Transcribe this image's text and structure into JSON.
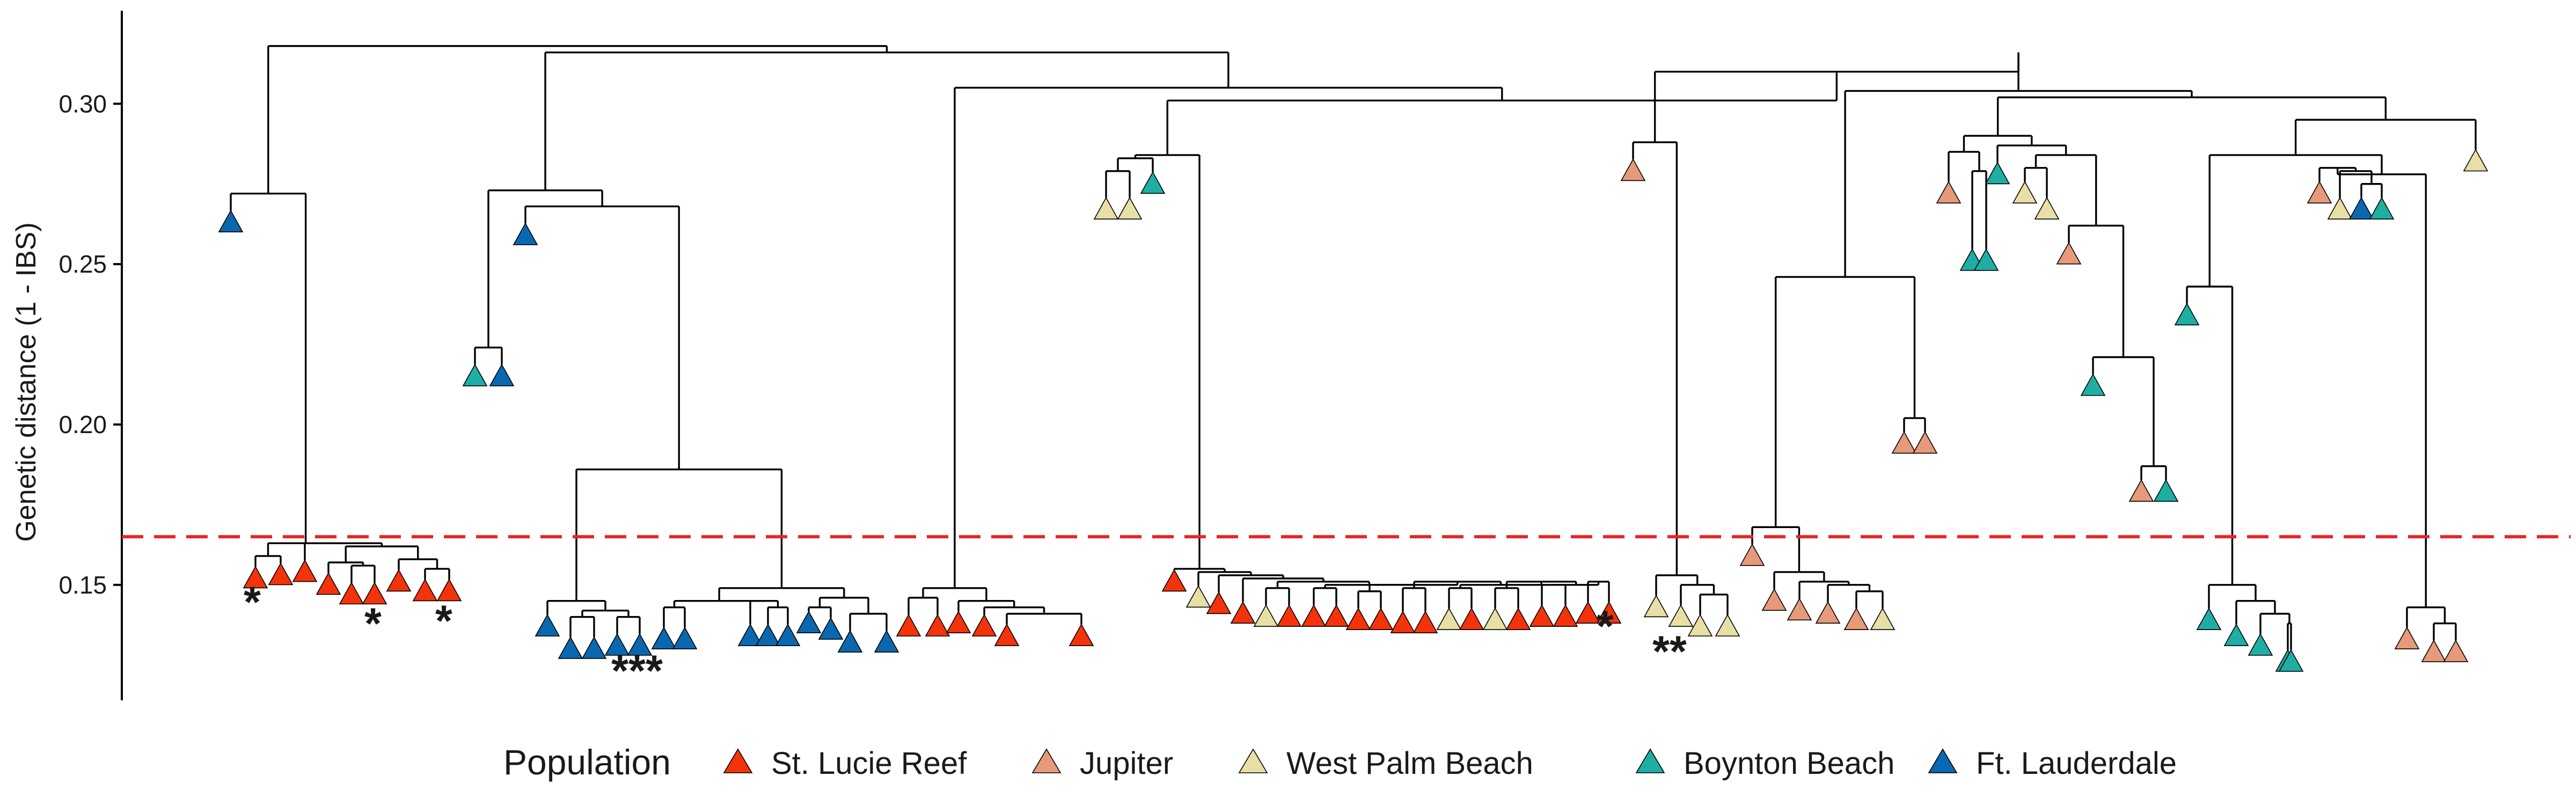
{
  "chart_data": {
    "type": "dendrogram",
    "ylabel": "Genetic distance (1 - IBS)",
    "xlabel": "",
    "ylim": [
      0.114,
      0.329
    ],
    "yticks": [
      0.15,
      0.2,
      0.25,
      0.3
    ],
    "ytick_labels": [
      "0.15",
      "0.20",
      "0.25",
      "0.30"
    ],
    "threshold": {
      "value": 0.165,
      "color": "#ee2222",
      "style": "dashed"
    },
    "legend": {
      "title": "Population",
      "placement": "bottom",
      "items": [
        {
          "key": "SLR",
          "label": "St. Lucie Reef",
          "color": "#f5330a"
        },
        {
          "key": "JUP",
          "label": "Jupiter",
          "color": "#e69a7a"
        },
        {
          "key": "WPB",
          "label": "West Palm Beach",
          "color": "#e8dfa6"
        },
        {
          "key": "BB",
          "label": "Boynton Beach",
          "color": "#1faea4"
        },
        {
          "key": "FTL",
          "label": "Ft. Lauderdale",
          "color": "#0a68b0"
        }
      ]
    },
    "marks": [
      "*",
      "*",
      "*",
      "***",
      "*",
      "**"
    ],
    "tree": [
      0.318,
      [
        0.272,
        [
          "FTL",
          0.263
        ],
        [
          0.163,
          [
            0.159,
            [
              "SLR",
              0.152
            ],
            [
              "SLR",
              0.153
            ]
          ],
          [
            0.163,
            [
              "SLR",
              0.154
            ],
            [
              0.162,
              [
                0.157,
                [
                  "SLR",
                  0.15
                ],
                [
                  0.156,
                  [
                    "SLR",
                    0.147
                  ],
                  [
                    "SLR",
                    0.147
                  ]
                ]
              ],
              [
                0.158,
                [
                  "SLR",
                  0.151
                ],
                [
                  0.155,
                  [
                    "SLR",
                    0.148
                  ],
                  [
                    "SLR",
                    0.148
                  ]
                ]
              ]
            ]
          ]
        ]
      ],
      [
        0.316,
        [
          0.273,
          [
            0.224,
            [
              "BB",
              0.215
            ],
            [
              "FTL",
              0.215
            ]
          ],
          [
            0.268,
            [
              "FTL",
              0.259
            ],
            [
              0.186,
              [
                0.145,
                [
                  "FTL",
                  0.137
                ],
                [
                  0.142,
                  [
                    0.14,
                    [
                      "FTL",
                      0.13
                    ],
                    [
                      "FTL",
                      0.13
                    ]
                  ],
                  [
                    0.14,
                    [
                      "FTL",
                      0.131
                    ],
                    [
                      "FTL",
                      0.131
                    ]
                  ]
                ]
              ],
              [
                0.149,
                [
                  0.145,
                  [
                    0.143,
                    [
                      "FTL",
                      0.133
                    ],
                    [
                      "FTL",
                      0.133
                    ]
                  ],
                  [
                    0.145,
                    [
                      "FTL",
                      0.134
                    ],
                    [
                      0.143,
                      [
                        "FTL",
                        0.134
                      ],
                      [
                        "FTL",
                        0.134
                      ]
                    ]
                  ]
                ],
                [
                  0.146,
                  [
                    0.143,
                    [
                      "FTL",
                      0.138
                    ],
                    [
                      "FTL",
                      0.136
                    ]
                  ],
                  [
                    0.141,
                    [
                      "FTL",
                      0.132
                    ],
                    [
                      "FTL",
                      0.132
                    ]
                  ]
                ]
              ]
            ]
          ]
        ],
        [
          0.305,
          [
            0.149,
            [
              0.146,
              [
                "SLR",
                0.137
              ],
              [
                "SLR",
                0.137
              ]
            ],
            [
              0.145,
              [
                "SLR",
                0.138
              ],
              [
                0.143,
                [
                  "SLR",
                  0.137
                ],
                [
                  0.141,
                  [
                    "SLR",
                    0.134
                  ],
                  [
                    "SLR",
                    0.134
                  ]
                ]
              ]
            ]
          ],
          [
            0.301,
            [
              0.284,
              [
                0.283,
                [
                  0.279,
                  [
                    "WPB",
                    0.267
                  ],
                  [
                    "WPB",
                    0.267
                  ]
                ],
                [
                  "BB",
                  0.275
                ]
              ],
              [
                0.155,
                [
                  "SLR",
                  0.151
                ],
                [
                  0.154,
                  [
                    "WPB",
                    0.146
                  ],
                  [
                    0.153,
                    [
                      "SLR",
                      0.144
                    ],
                    [
                      0.152,
                      [
                        "SLR",
                        0.141
                      ],
                      [
                        0.151,
                        [
                          0.149,
                          [
                            "WPB",
                            0.14
                          ],
                          [
                            "SLR",
                            0.14
                          ]
                        ],
                        [
                          0.15,
                          [
                            0.149,
                            [
                              "SLR",
                              0.14
                            ],
                            [
                              "SLR",
                              0.14
                            ]
                          ],
                          [
                            0.15,
                            [
                              0.148,
                              [
                                "SLR",
                                0.139
                              ],
                              [
                                "SLR",
                                0.139
                              ]
                            ],
                            [
                              0.151,
                              [
                                0.149,
                                [
                                  "SLR",
                                  0.138
                                ],
                                [
                                  "SLR",
                                  0.138
                                ]
                              ],
                              [
                                0.15,
                                [
                                  0.149,
                                  [
                                    "WPB",
                                    0.139
                                  ],
                                  [
                                    "SLR",
                                    0.139
                                  ]
                                ],
                                [
                                  0.151,
                                  [
                                    0.149,
                                    [
                                      "WPB",
                                      0.139
                                    ],
                                    [
                                      "SLR",
                                      0.139
                                    ]
                                  ],
                                  [
                                    0.15,
                                    [
                                      0.15,
                                      [
                                        "SLR",
                                        0.14
                                      ],
                                      [
                                        "SLR",
                                        0.14
                                      ]
                                    ],
                                    [
                                      0.151,
                                      [
                                        "SLR",
                                        0.141
                                      ],
                                      [
                                        "SLR",
                                        0.141
                                      ]
                                    ]
                                  ]
                                ]
                              ]
                            ]
                          ]
                        ]
                      ]
                    ]
                  ]
                ]
              ]
            ],
            [
              0.31,
              [
                0.288,
                [
                  "JUP",
                  0.279
                ],
                [
                  0.153,
                  [
                    "WPB",
                    0.143
                  ],
                  [
                    0.15,
                    [
                      "WPB",
                      0.14
                    ],
                    [
                      0.147,
                      [
                        "WPB",
                        0.137
                      ],
                      [
                        "WPB",
                        0.137
                      ]
                    ]
                  ]
                ]
              ],
              [
                0.316,
                [
                  0.304,
                  [
                    0.246,
                    [
                      0.168,
                      [
                        "JUP",
                        0.159
                      ],
                      [
                        0.154,
                        [
                          "JUP",
                          0.145
                        ],
                        [
                          0.151,
                          [
                            "JUP",
                            0.142
                          ],
                          [
                            0.15,
                            [
                              "JUP",
                              0.141
                            ],
                            [
                              0.148,
                              [
                                "JUP",
                                0.139
                              ],
                              [
                                "WPB",
                                0.139
                              ]
                            ]
                          ]
                        ]
                      ]
                    ],
                    [
                      0.202,
                      [
                        "JUP",
                        0.194
                      ],
                      [
                        "JUP",
                        0.194
                      ]
                    ]
                  ],
                  [
                    0.302,
                    [
                      0.29,
                      [
                        0.285,
                        [
                          "JUP",
                          0.272
                        ],
                        [
                          0.279,
                          [
                            "BB",
                            0.251
                          ],
                          [
                            "BB",
                            0.251
                          ]
                        ]
                      ],
                      [
                        0.287,
                        [
                          "BB",
                          0.278
                        ],
                        [
                          0.284,
                          [
                            0.28,
                            [
                              "WPB",
                              0.272
                            ],
                            [
                              "WPB",
                              0.267
                            ]
                          ],
                          [
                            0.262,
                            [
                              "JUP",
                              0.253
                            ],
                            [
                              0.221,
                              [
                                "BB",
                                0.212
                              ],
                              [
                                0.187,
                                [
                                  "JUP",
                                  0.179
                                ],
                                [
                                  "BB",
                                  0.179
                                ]
                              ]
                            ]
                          ]
                        ]
                      ]
                    ],
                    [
                      0.295,
                      [
                        0.284,
                        [
                          0.243,
                          [
                            "BB",
                            0.234
                          ],
                          [
                            0.15,
                            [
                              "BB",
                              0.139
                            ],
                            [
                              0.145,
                              [
                                "BB",
                                0.134
                              ],
                              [
                                0.141,
                                [
                                  "BB",
                                  0.131
                                ],
                                [
                                  0.138,
                                  [
                                    "BB",
                                    0.126
                                  ],
                                  [
                                    "BB",
                                    0.126
                                  ]
                                ]
                              ]
                            ]
                          ]
                        ],
                        [
                          0.278,
                          [
                            0.28,
                            [
                              "JUP",
                              0.272
                            ],
                            [
                              0.279,
                              [
                                "WPB",
                                0.267
                              ],
                              [
                                0.275,
                                [
                                  "FTL",
                                  0.267
                                ],
                                [
                                  "BB",
                                  0.267
                                ]
                              ]
                            ]
                          ],
                          [
                            0.143,
                            [
                              "JUP",
                              0.133
                            ],
                            [
                              0.138,
                              [
                                "JUP",
                                0.129
                              ],
                              [
                                "JUP",
                                0.129
                              ]
                            ]
                          ]
                        ]
                      ],
                      [
                        "WPB",
                        0.282
                      ]
                    ]
                  ]
                ]
              ]
            ]
          ]
        ]
      ]
    ]
  }
}
